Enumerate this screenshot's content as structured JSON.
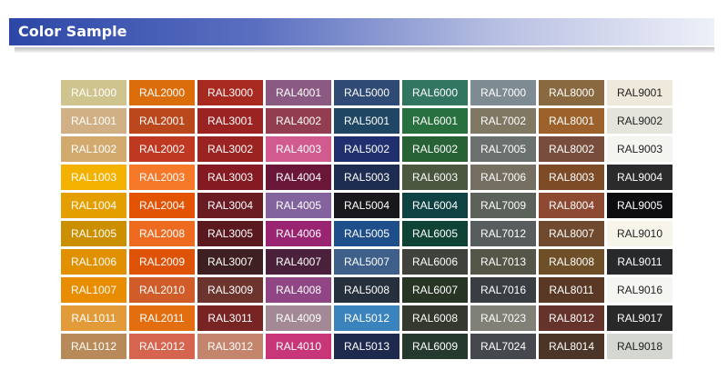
{
  "header": {
    "title": "Color Sample"
  },
  "swatches": {
    "rows": [
      [
        {
          "label": "RAL1000",
          "color": "#cfc48e"
        },
        {
          "label": "RAL2000",
          "color": "#db6e0a"
        },
        {
          "label": "RAL3000",
          "color": "#a72920"
        },
        {
          "label": "RAL4001",
          "color": "#8a5a83"
        },
        {
          "label": "RAL5000",
          "color": "#2f4a74"
        },
        {
          "label": "RAL6000",
          "color": "#327662"
        },
        {
          "label": "RAL7000",
          "color": "#7e8b92"
        },
        {
          "label": "RAL8000",
          "color": "#89693f"
        },
        {
          "label": "RAL9001",
          "color": "#efe9dc"
        }
      ],
      [
        {
          "label": "RAL1001",
          "color": "#d0b084"
        },
        {
          "label": "RAL2001",
          "color": "#ba481c"
        },
        {
          "label": "RAL3001",
          "color": "#9b2423"
        },
        {
          "label": "RAL4002",
          "color": "#933d50"
        },
        {
          "label": "RAL5001",
          "color": "#1f4764"
        },
        {
          "label": "RAL6001",
          "color": "#28713e"
        },
        {
          "label": "RAL7002",
          "color": "#817863"
        },
        {
          "label": "RAL8001",
          "color": "#9d622b"
        },
        {
          "label": "RAL9002",
          "color": "#e4e4dc"
        }
      ],
      [
        {
          "label": "RAL1002",
          "color": "#d2aa6d"
        },
        {
          "label": "RAL2002",
          "color": "#bf3922"
        },
        {
          "label": "RAL3002",
          "color": "#9b2321"
        },
        {
          "label": "RAL4003",
          "color": "#d15b8f"
        },
        {
          "label": "RAL5002",
          "color": "#20306f"
        },
        {
          "label": "RAL6002",
          "color": "#276235"
        },
        {
          "label": "RAL7005",
          "color": "#6b716f"
        },
        {
          "label": "RAL8002",
          "color": "#794d3e"
        },
        {
          "label": "RAL9003",
          "color": "#f4f4f0"
        }
      ],
      [
        {
          "label": "RAL1003",
          "color": "#f3b200"
        },
        {
          "label": "RAL2003",
          "color": "#f67829"
        },
        {
          "label": "RAL3003",
          "color": "#861a22"
        },
        {
          "label": "RAL4004",
          "color": "#691639"
        },
        {
          "label": "RAL5003",
          "color": "#1d2d52"
        },
        {
          "label": "RAL6003",
          "color": "#4b573e"
        },
        {
          "label": "RAL7006",
          "color": "#756f61"
        },
        {
          "label": "RAL8003",
          "color": "#7e4b27"
        },
        {
          "label": "RAL9004",
          "color": "#2b2b2c"
        }
      ],
      [
        {
          "label": "RAL1004",
          "color": "#e49e00"
        },
        {
          "label": "RAL2004",
          "color": "#e25304"
        },
        {
          "label": "RAL3004",
          "color": "#6b1c23"
        },
        {
          "label": "RAL4005",
          "color": "#83639d"
        },
        {
          "label": "RAL5004",
          "color": "#18171c"
        },
        {
          "label": "RAL6004",
          "color": "#0e4243"
        },
        {
          "label": "RAL7009",
          "color": "#5b6259"
        },
        {
          "label": "RAL8004",
          "color": "#8d4931"
        },
        {
          "label": "RAL9005",
          "color": "#0e0e10"
        }
      ],
      [
        {
          "label": "RAL1005",
          "color": "#cb8f00"
        },
        {
          "label": "RAL2008",
          "color": "#ed6b21"
        },
        {
          "label": "RAL3005",
          "color": "#59191f"
        },
        {
          "label": "RAL4006",
          "color": "#992572"
        },
        {
          "label": "RAL5005",
          "color": "#1f4f8a"
        },
        {
          "label": "RAL6005",
          "color": "#0f4336"
        },
        {
          "label": "RAL7012",
          "color": "#575d5e"
        },
        {
          "label": "RAL8007",
          "color": "#6f4a2f"
        },
        {
          "label": "RAL9010",
          "color": "#f7f4ea"
        }
      ],
      [
        {
          "label": "RAL1006",
          "color": "#e19000"
        },
        {
          "label": "RAL2009",
          "color": "#de5308"
        },
        {
          "label": "RAL3007",
          "color": "#3e2022"
        },
        {
          "label": "RAL4007",
          "color": "#4a203b"
        },
        {
          "label": "RAL5007",
          "color": "#3e5f8a"
        },
        {
          "label": "RAL6006",
          "color": "#40433b"
        },
        {
          "label": "RAL7013",
          "color": "#555548"
        },
        {
          "label": "RAL8008",
          "color": "#6f4f28"
        },
        {
          "label": "RAL9011",
          "color": "#27292b"
        }
      ],
      [
        {
          "label": "RAL1007",
          "color": "#e88c00"
        },
        {
          "label": "RAL2010",
          "color": "#d05d29"
        },
        {
          "label": "RAL3009",
          "color": "#6d342d"
        },
        {
          "label": "RAL4008",
          "color": "#904684"
        },
        {
          "label": "RAL5008",
          "color": "#26303d"
        },
        {
          "label": "RAL6007",
          "color": "#283424"
        },
        {
          "label": "RAL7016",
          "color": "#383e42"
        },
        {
          "label": "RAL8011",
          "color": "#5a3826"
        },
        {
          "label": "RAL9016",
          "color": "#f5f5f1"
        }
      ],
      [
        {
          "label": "RAL1011",
          "color": "#e39b3a"
        },
        {
          "label": "RAL2011",
          "color": "#e26e0f"
        },
        {
          "label": "RAL3011",
          "color": "#782423"
        },
        {
          "label": "RAL4009",
          "color": "#a38995"
        },
        {
          "label": "RAL5012",
          "color": "#3b83bd"
        },
        {
          "label": "RAL6008",
          "color": "#35382e"
        },
        {
          "label": "RAL7023",
          "color": "#808076"
        },
        {
          "label": "RAL8012",
          "color": "#66332b"
        },
        {
          "label": "RAL9017",
          "color": "#2a292a"
        }
      ],
      [
        {
          "label": "RAL1012",
          "color": "#b88a5a"
        },
        {
          "label": "RAL2012",
          "color": "#d5654e"
        },
        {
          "label": "RAL3012",
          "color": "#c5856d"
        },
        {
          "label": "RAL4010",
          "color": "#c63678"
        },
        {
          "label": "RAL5013",
          "color": "#1e2a4d"
        },
        {
          "label": "RAL6009",
          "color": "#26392f"
        },
        {
          "label": "RAL7024",
          "color": "#45494e"
        },
        {
          "label": "RAL8014",
          "color": "#4a3526"
        },
        {
          "label": "RAL9018",
          "color": "#d4d8d0"
        }
      ]
    ]
  }
}
